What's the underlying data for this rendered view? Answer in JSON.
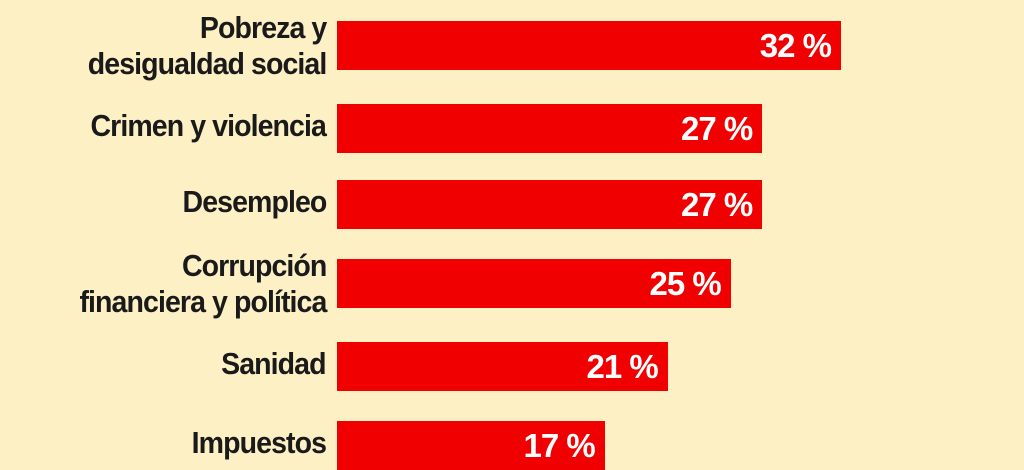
{
  "chart_data": {
    "type": "bar",
    "orientation": "horizontal",
    "categories": [
      "Pobreza y desigualdad social",
      "Crimen y violencia",
      "Desempleo",
      "Corrupción financiera y política",
      "Sanidad",
      "Impuestos"
    ],
    "category_lines": [
      [
        "Pobreza y",
        "desigualdad social"
      ],
      [
        "Crimen y violencia"
      ],
      [
        "Desempleo"
      ],
      [
        "Corrupción",
        "financiera y política"
      ],
      [
        "Sanidad"
      ],
      [
        "Impuestos"
      ]
    ],
    "values": [
      32,
      27,
      27,
      25,
      21,
      17
    ],
    "value_labels": [
      "32 %",
      "27 %",
      "27 %",
      "25 %",
      "21 %",
      "17 %"
    ],
    "xlim": [
      0,
      100
    ],
    "grid": false,
    "legend": "none"
  },
  "colors": {
    "background": "#fdf0c5",
    "bar": "#f00000",
    "category_text": "#1a1a1a",
    "value_text": "#ffffff"
  }
}
